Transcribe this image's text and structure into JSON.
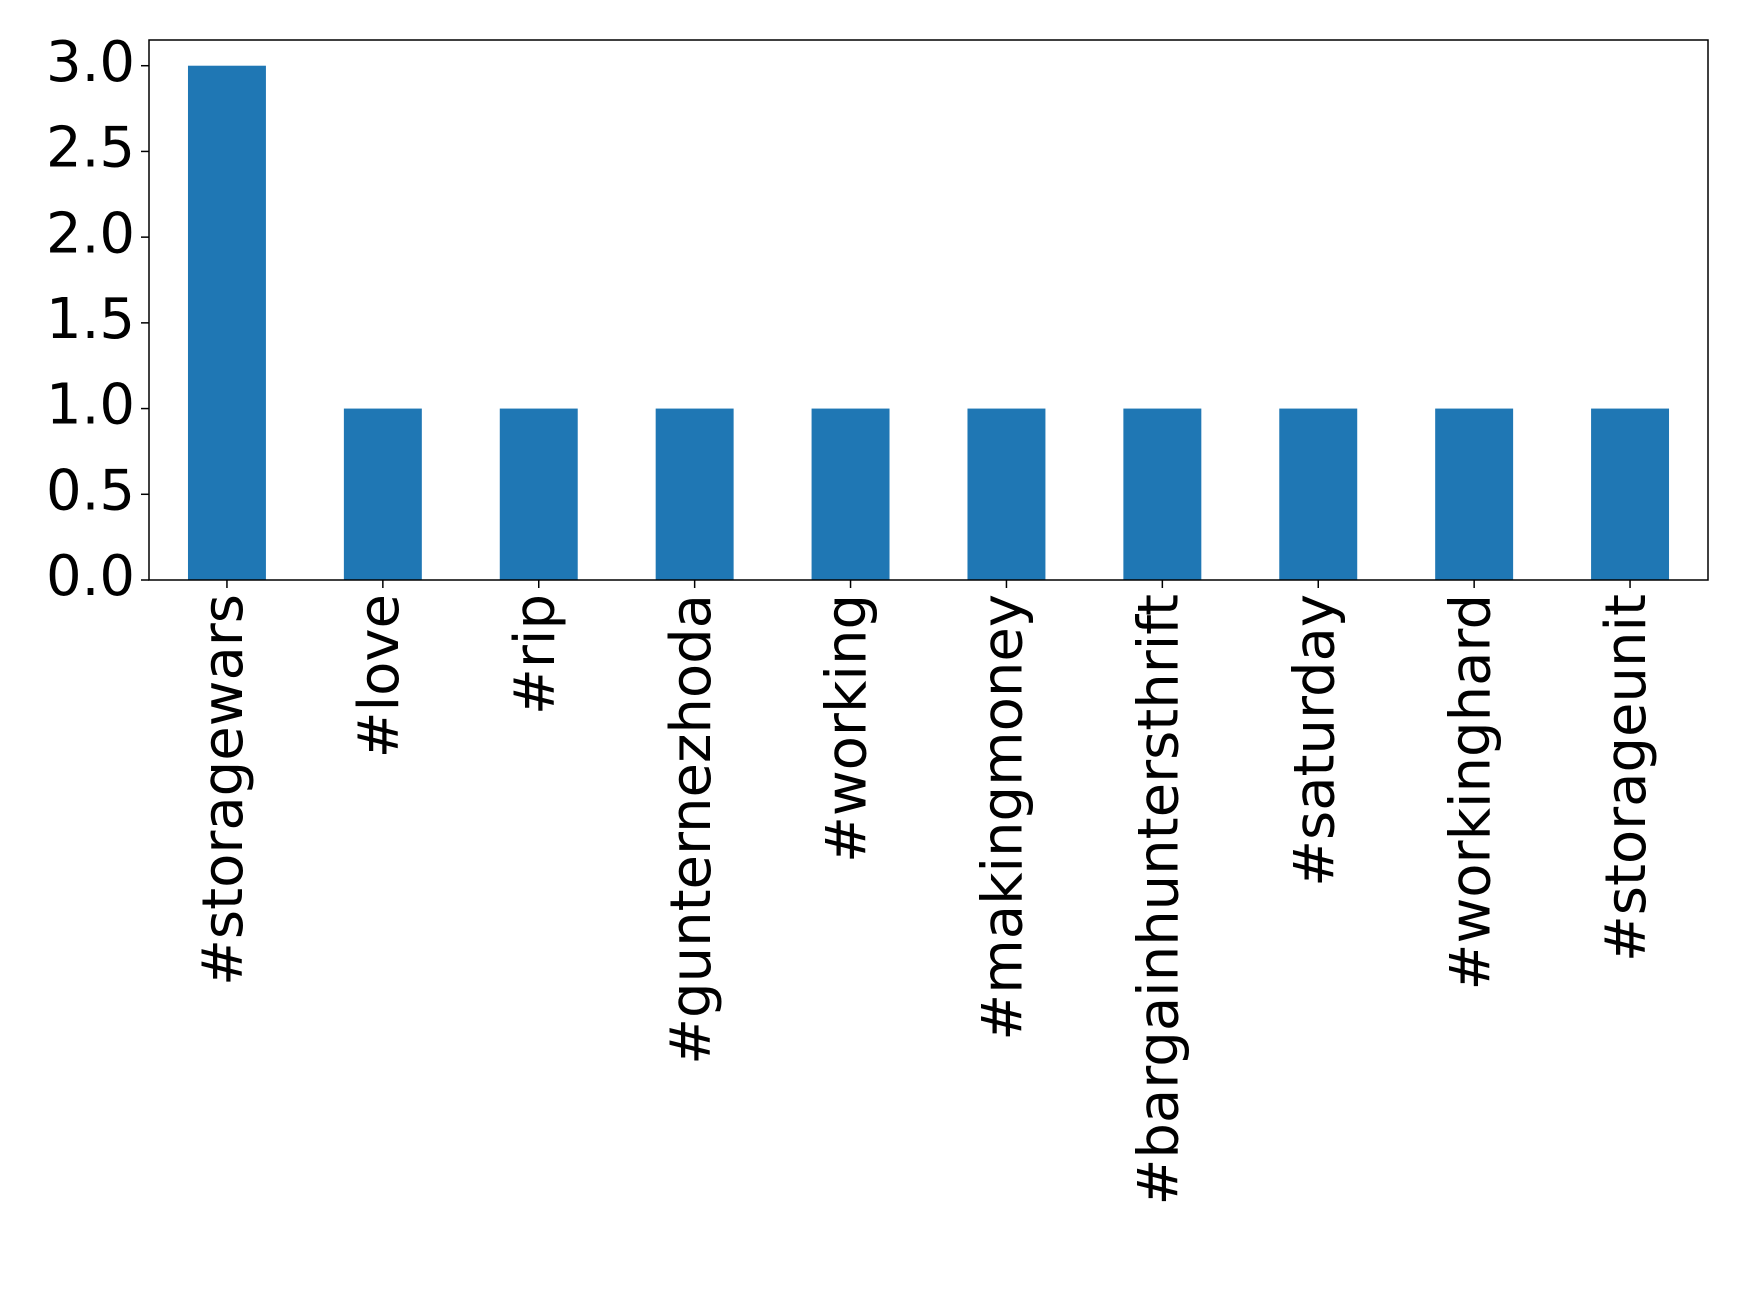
{
  "chart_data": {
    "type": "bar",
    "categories": [
      "#storagewars",
      "#love",
      "#rip",
      "#gunternezhoda",
      "#working",
      "#makingmoney",
      "#bargainhuntersthrift",
      "#saturday",
      "#workinghard",
      "#storageunit"
    ],
    "values": [
      3,
      1,
      1,
      1,
      1,
      1,
      1,
      1,
      1,
      1
    ],
    "color": "#1f77b4",
    "ylim": [
      0,
      3.15
    ],
    "yticks": [
      {
        "value": 0,
        "label": "0.0"
      },
      0.5,
      {
        "value": 1,
        "label": "1.0"
      },
      1.5,
      {
        "value": 2,
        "label": "2.0"
      },
      2.5,
      {
        "value": 3,
        "label": "3.0"
      }
    ],
    "grid": false
  }
}
